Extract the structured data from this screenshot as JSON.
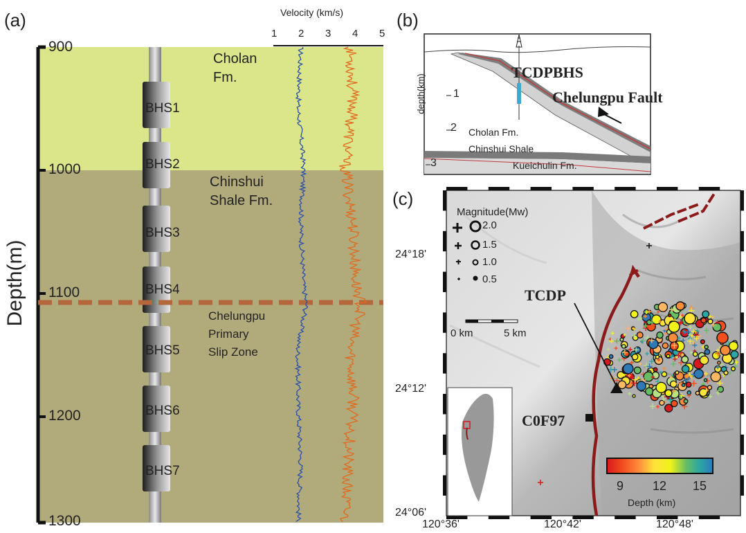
{
  "panels": {
    "a": {
      "label": "(a)"
    },
    "b": {
      "label": "(b)"
    },
    "c": {
      "label": "(c)"
    }
  },
  "panel_a": {
    "depth_axis_title": "Depth(m)",
    "depth_ticks": [
      "900",
      "1000",
      "1100",
      "1200",
      "1300"
    ],
    "velocity_axis_title": "Velocity (km/s)",
    "velocity_ticks": [
      "1",
      "2",
      "3",
      "4",
      "5"
    ],
    "formation_labels": [
      [
        "Cholan",
        "Fm."
      ],
      [
        "Chinshui",
        "Shale Fm."
      ],
      [
        "Chelungpu",
        "Primary",
        "Slip Zone"
      ]
    ],
    "sensors": [
      "BHS1",
      "BHS2",
      "BHS3",
      "BHS4",
      "BHS5",
      "BHS6",
      "BHS7"
    ],
    "colors": {
      "cholan": "#dbe58a",
      "chinshui": "#b1ab7c",
      "vs_curve": "#2a4fa8",
      "vp_curve": "#e06a1e",
      "slip_line": "#b5663a"
    }
  },
  "panel_b": {
    "depth_label": "depth(km)",
    "depth_ticks": [
      "1",
      "2",
      "3"
    ],
    "borehole_label": "TCDPBHS",
    "fault_label": "Chelungpu Fault",
    "units": [
      "Cholan Fm.",
      "Chinshui Shale",
      "Kueichulin Fm."
    ]
  },
  "panel_c": {
    "legend_title": "Magnitude(Mw)",
    "magnitudes": [
      "2.0",
      "1.5",
      "1.0",
      "0.5"
    ],
    "scalebar": [
      "0 km",
      "5 km"
    ],
    "station_labels": [
      "TCDP",
      "C0F97"
    ],
    "lat_ticks": [
      "24°18'",
      "24°12'",
      "24°06'"
    ],
    "lon_ticks": [
      "120°36'",
      "120°42'",
      "120°48'"
    ],
    "depth_colorbar": {
      "ticks": [
        "9",
        "12",
        "15"
      ],
      "title": "Depth (km)",
      "colors": [
        "#d7191c",
        "#f24e1e",
        "#fd8d3c",
        "#fdb863",
        "#fee33a",
        "#f1f21a",
        "#b8e186",
        "#66bd63",
        "#2ba5a5",
        "#2c7bb6"
      ]
    }
  },
  "chart_data": [
    {
      "type": "line",
      "title": "",
      "xlabel": "Velocity (km/s)",
      "ylabel": "Depth(m)",
      "xlim": [
        1,
        5
      ],
      "ylim": [
        1300,
        900
      ],
      "series": [
        {
          "color": "#2a4fa8",
          "y": [
            900,
            950,
            1000,
            1050,
            1100,
            1117,
            1150,
            1200,
            1250,
            1300
          ],
          "values": [
            2.0,
            1.9,
            2.1,
            2.0,
            2.1,
            2.2,
            1.9,
            1.9,
            2.0,
            1.9
          ]
        },
        {
          "color": "#e06a1e",
          "y": [
            900,
            950,
            1000,
            1050,
            1100,
            1117,
            1150,
            1200,
            1250,
            1300
          ],
          "values": [
            3.8,
            3.9,
            3.6,
            3.9,
            4.0,
            4.2,
            3.8,
            3.9,
            3.7,
            3.6
          ]
        }
      ]
    }
  ]
}
